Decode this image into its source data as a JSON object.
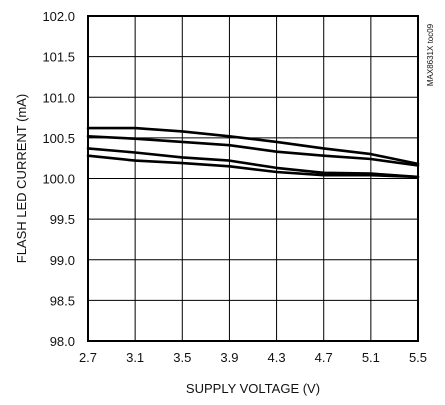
{
  "chart_data": {
    "type": "line",
    "title": "",
    "xlabel": "SUPPLY VOLTAGE (V)",
    "ylabel": "FLASH LED CURRENT (mA)",
    "xlim": [
      2.7,
      5.5
    ],
    "ylim": [
      98.0,
      102.0
    ],
    "x_ticks": [
      "2.7",
      "3.1",
      "3.5",
      "3.9",
      "4.3",
      "4.7",
      "5.1",
      "5.5"
    ],
    "y_ticks": [
      "98.0",
      "98.5",
      "99.0",
      "99.5",
      "100.0",
      "100.5",
      "101.0",
      "101.5",
      "102.0"
    ],
    "grid": true,
    "annotation": "MAX8631X toc09",
    "x": [
      2.7,
      3.1,
      3.5,
      3.9,
      4.3,
      4.7,
      5.1,
      5.5
    ],
    "series": [
      {
        "values": [
          100.62,
          100.62,
          100.58,
          100.52,
          100.45,
          100.37,
          100.3,
          100.18
        ]
      },
      {
        "values": [
          100.52,
          100.49,
          100.45,
          100.41,
          100.33,
          100.28,
          100.24,
          100.16
        ]
      },
      {
        "values": [
          100.37,
          100.32,
          100.26,
          100.22,
          100.13,
          100.07,
          100.06,
          100.02
        ]
      },
      {
        "values": [
          100.28,
          100.22,
          100.19,
          100.15,
          100.08,
          100.04,
          100.04,
          100.02
        ]
      }
    ]
  }
}
